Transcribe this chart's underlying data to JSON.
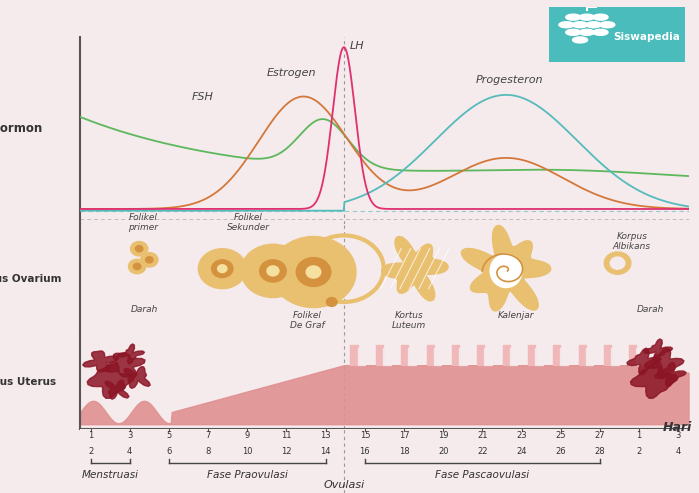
{
  "bg_color": "#f5eaec",
  "fsh_color": "#5db85d",
  "lh_color": "#e03070",
  "estrogen_color": "#d4783a",
  "progesteron_color": "#55bbbb",
  "badge_bg": "#4abcbc",
  "axis_color": "#444444",
  "text_color": "#444444",
  "blood_color": "#8b1525",
  "endo_color": "#e09090",
  "villi_color": "#f0b8b8",
  "follicle_fill": "#e8c070",
  "follicle_inner": "#d4923e",
  "follicle_light": "#f5e0a0",
  "label_hormon": "Hormon",
  "label_ovarium": "Siklus Ovarium",
  "label_uterus": "Siklus Uterus",
  "label_hari": "Hari",
  "label_fsh": "FSH",
  "label_estrogen": "Estrogen",
  "label_lh": "LH",
  "label_progesteron": "Progesteron",
  "label_folikel_primer": "Folikel\nprimer",
  "label_folikel_sekunder": "Folikel\nSekunder",
  "label_folikel_degraf": "Folikel\nDe Graf",
  "label_darah1": "Darah",
  "label_kortus": "Kortus\nLuteum",
  "label_kalenjar": "Kalenjar",
  "label_korpus": "Korpus\nAlbikans",
  "label_darah2": "Darah",
  "label_menstruasi": "Menstruasi",
  "label_praovulasi": "Fase Praovulasi",
  "label_pascaovulasi": "Fase Pascaovulasi",
  "label_ovulasi": "Ovulasi",
  "siswapedia": "Siswapedia",
  "row1": [
    1,
    3,
    5,
    7,
    9,
    11,
    13,
    15,
    17,
    19,
    21,
    23,
    25,
    27,
    1,
    3
  ],
  "row2": [
    2,
    4,
    6,
    8,
    10,
    12,
    14,
    16,
    18,
    20,
    22,
    24,
    26,
    28,
    2,
    4
  ]
}
